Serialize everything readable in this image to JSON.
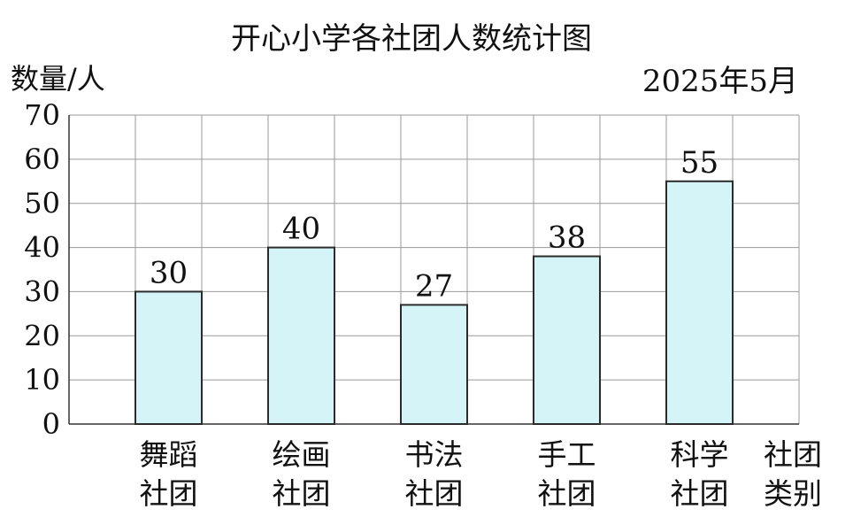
{
  "chart_data": {
    "type": "bar",
    "title": "开心小学各社团人数统计图",
    "ylabel": "数量/人",
    "xlabel": [
      "社团",
      "类别"
    ],
    "date": "2025年5月",
    "ylim": [
      0,
      70
    ],
    "yticks": [
      0,
      10,
      20,
      30,
      40,
      50,
      60,
      70
    ],
    "grid": true,
    "categories": [
      [
        "舞蹈",
        "社团"
      ],
      [
        "绘画",
        "社团"
      ],
      [
        "书法",
        "社团"
      ],
      [
        "手工",
        "社团"
      ],
      [
        "科学",
        "社团"
      ]
    ],
    "values": [
      30,
      40,
      27,
      38,
      55
    ],
    "bar_color": "#d4f4f8"
  }
}
